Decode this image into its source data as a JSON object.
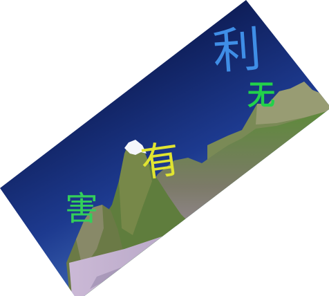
{
  "labels": {
    "li": "利",
    "wu": "无",
    "you": "有",
    "hai": "害"
  },
  "colors": {
    "sky_top": "#03082e",
    "sky_bottom": "#5f93d9",
    "background": "#ffffff",
    "label_blue": "#3f8ee6",
    "label_green": "#22d24a",
    "label_yellow": "#e0e431",
    "label_green_2": "#33cf5a",
    "grass": "#4f9d55",
    "snow": "#f4f6fb",
    "rock_light": "#b9a7c2",
    "rock_dark": "#6b5a68",
    "forest": "#4b7a36"
  }
}
